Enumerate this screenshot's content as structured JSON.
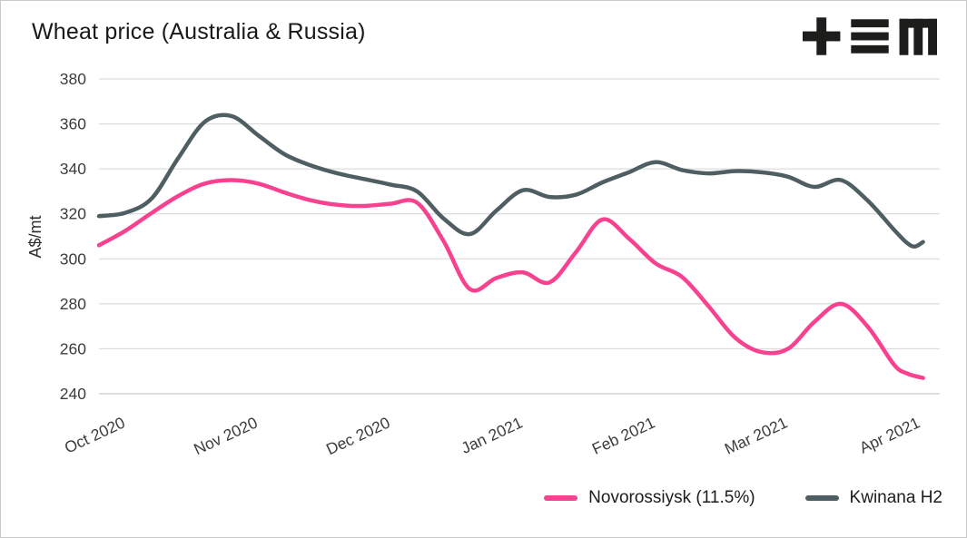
{
  "colors": {
    "background": "#ffffff",
    "grid": "#d4d4d4",
    "baseline": "#bdbdbd",
    "axis_text": "#3c3c3c",
    "title_text": "#191919",
    "logo": "#1d1d1b",
    "novorossiysk_pink": "#f8418f",
    "kwinana_gray": "#4f5e62"
  },
  "logo": {
    "glyphs": [
      "plus-icon",
      "three-bars-icon",
      "m-icon"
    ]
  },
  "chart_data": {
    "type": "line",
    "title": "Wheat price (Australia & Russia)",
    "xlabel": "",
    "ylabel": "A$/mt",
    "ylim": [
      240,
      380
    ],
    "y_ticks": [
      240,
      260,
      280,
      300,
      320,
      340,
      360,
      380
    ],
    "xlim": [
      0,
      6.25
    ],
    "x_ticks": [
      0,
      1,
      2,
      3,
      4,
      5,
      6
    ],
    "x_tick_labels": [
      "Oct 2020",
      "Nov 2020",
      "Dec 2020",
      "Jan 2021",
      "Feb 2021",
      "Mar 2021",
      "Apr 2021"
    ],
    "grid": "horizontal",
    "legend_position": "bottom-right",
    "series": [
      {
        "name": "Novorossiysk (11.5%)",
        "color": "#f8418f",
        "x": [
          0,
          0.2,
          0.4,
          0.6,
          0.8,
          1.0,
          1.2,
          1.4,
          1.6,
          1.8,
          2.0,
          2.2,
          2.4,
          2.6,
          2.8,
          3.0,
          3.2,
          3.4,
          3.6,
          3.8,
          4.0,
          4.2,
          4.4,
          4.6,
          4.8,
          5.0,
          5.2,
          5.4,
          5.6,
          5.8,
          6.0,
          6.1,
          6.22
        ],
        "y": [
          306,
          312.5,
          320.5,
          328,
          333.5,
          335,
          333.5,
          329.5,
          326,
          324,
          323.5,
          324.5,
          325,
          308,
          286.5,
          291.5,
          294,
          289.5,
          303,
          317.5,
          309,
          298,
          292,
          279,
          265,
          258.5,
          260,
          272,
          280,
          270,
          253,
          249,
          247
        ]
      },
      {
        "name": "Kwinana H2",
        "color": "#4f5e62",
        "x": [
          0,
          0.2,
          0.4,
          0.6,
          0.8,
          1.0,
          1.2,
          1.4,
          1.6,
          1.8,
          2.0,
          2.2,
          2.4,
          2.6,
          2.8,
          3.0,
          3.2,
          3.4,
          3.6,
          3.8,
          4.0,
          4.2,
          4.4,
          4.6,
          4.8,
          5.0,
          5.2,
          5.4,
          5.6,
          5.8,
          6.0,
          6.1,
          6.16,
          6.22
        ],
        "y": [
          319,
          320.5,
          327,
          345,
          361,
          363.5,
          355,
          346.5,
          341.5,
          338,
          335.5,
          333,
          330,
          318,
          311,
          321.5,
          330.5,
          327.5,
          328.5,
          334,
          338.5,
          343,
          339.5,
          338,
          339,
          338.5,
          336.5,
          332,
          335,
          326,
          313,
          307,
          305.5,
          307.5
        ]
      }
    ]
  }
}
